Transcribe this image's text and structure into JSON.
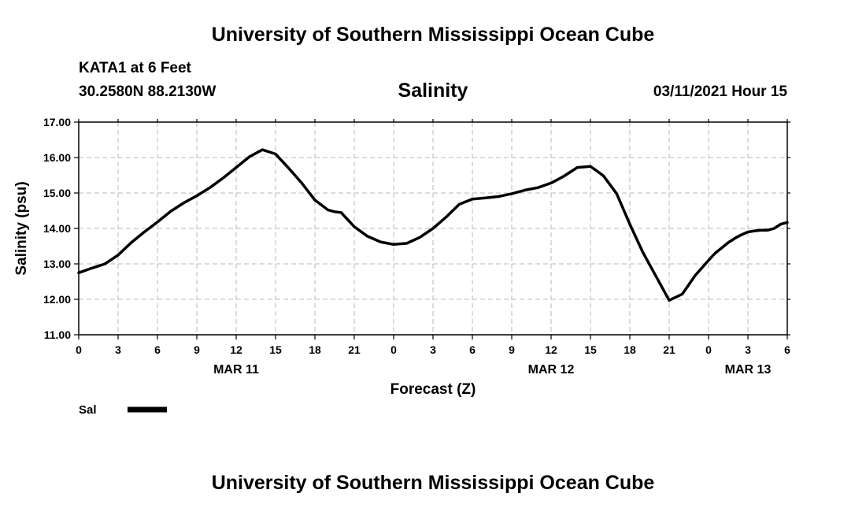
{
  "header": {
    "title": "University of Southern Mississippi Ocean Cube",
    "station": "KATA1 at 6 Feet",
    "coordinates": "30.2580N 88.2130W",
    "parameter": "Salinity",
    "timestamp": "03/11/2021 Hour 15"
  },
  "footer": {
    "title": "University of Southern Mississippi Ocean Cube"
  },
  "chart_data": {
    "type": "line",
    "ylabel": "Salinity (psu)",
    "xlabel": "Forecast (Z)",
    "xlim": [
      0,
      54
    ],
    "ylim": [
      11,
      17
    ],
    "yticks": [
      "11.00",
      "12.00",
      "13.00",
      "14.00",
      "15.00",
      "16.00",
      "17.00"
    ],
    "xticks": [
      "0",
      "3",
      "6",
      "9",
      "12",
      "15",
      "18",
      "21",
      "0",
      "3",
      "6",
      "9",
      "12",
      "15",
      "18",
      "21",
      "0",
      "3",
      "6"
    ],
    "day_labels": [
      {
        "text": "MAR 11",
        "hour": 12
      },
      {
        "text": "MAR 12",
        "hour": 36
      },
      {
        "text": "MAR 13",
        "hour": 51
      }
    ],
    "grid": true,
    "legend": "bottom-left",
    "series": [
      {
        "name": "Sal",
        "color": "#000000",
        "x": [
          0,
          1,
          2,
          3,
          4,
          5,
          6,
          7,
          8,
          9,
          10,
          11,
          12,
          13,
          14,
          15,
          16,
          17,
          18,
          19,
          19.5,
          20,
          21,
          22,
          23,
          24,
          25,
          26,
          27,
          28,
          29,
          30,
          31,
          32,
          33,
          34,
          35,
          36,
          37,
          38,
          39,
          39.5,
          40,
          41,
          42,
          43,
          44,
          45,
          46,
          47,
          48,
          48.5,
          49,
          49.5,
          50,
          50.5,
          51,
          51.5,
          52,
          52.5,
          53,
          53.5,
          54
        ],
        "values": [
          12.75,
          12.88,
          13.0,
          13.25,
          13.6,
          13.9,
          14.18,
          14.48,
          14.72,
          14.92,
          15.15,
          15.42,
          15.72,
          16.02,
          16.22,
          16.1,
          15.7,
          15.28,
          14.8,
          14.52,
          14.47,
          14.45,
          14.05,
          13.78,
          13.62,
          13.55,
          13.58,
          13.75,
          14.0,
          14.32,
          14.68,
          14.83,
          14.86,
          14.9,
          14.98,
          15.08,
          15.15,
          15.28,
          15.48,
          15.72,
          15.75,
          15.62,
          15.48,
          14.98,
          14.12,
          13.32,
          12.65,
          11.97,
          12.15,
          12.68,
          13.1,
          13.3,
          13.45,
          13.6,
          13.72,
          13.82,
          13.9,
          13.93,
          13.95,
          13.95,
          14.0,
          14.12,
          14.17
        ]
      }
    ]
  }
}
